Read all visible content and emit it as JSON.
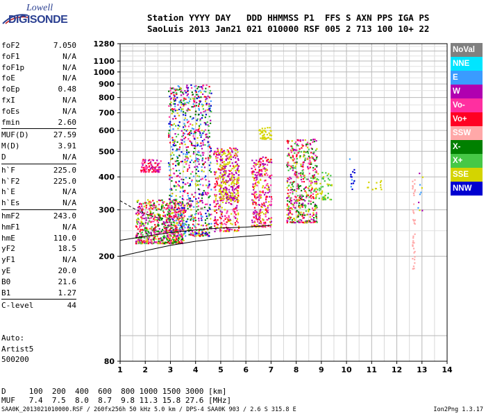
{
  "logo": {
    "line1": "Lowell",
    "line2": "DIGISONDE"
  },
  "header": {
    "line1": "Station YYYY DAY   DDD HHMMSS P1  FFS S AXN PPS IGA PS",
    "line2": "SaoLuis 2013 Jan21 021 010000 RSF 005 2 713 100 10+ 22"
  },
  "params": [
    {
      "k": "foF2",
      "v": "7.050"
    },
    {
      "k": "foF1",
      "v": "N/A"
    },
    {
      "k": "foF1p",
      "v": "N/A"
    },
    {
      "k": "foE",
      "v": "N/A"
    },
    {
      "k": "foEp",
      "v": "0.48"
    },
    {
      "k": "fxI",
      "v": "N/A"
    },
    {
      "k": "foEs",
      "v": "N/A"
    },
    {
      "k": "fmin",
      "v": "2.60"
    },
    {
      "sep": true
    },
    {
      "k": "MUF(D)",
      "v": "27.59"
    },
    {
      "k": "M(D)",
      "v": "3.91"
    },
    {
      "k": "D",
      "v": "N/A"
    },
    {
      "sep": true
    },
    {
      "k": "h`F",
      "v": "225.0"
    },
    {
      "k": "h`F2",
      "v": "225.0"
    },
    {
      "k": "h`E",
      "v": "N/A"
    },
    {
      "k": "h`Es",
      "v": "N/A"
    },
    {
      "sep": true
    },
    {
      "k": "hmF2",
      "v": "243.0"
    },
    {
      "k": "hmF1",
      "v": "N/A"
    },
    {
      "k": "hmE",
      "v": "110.0"
    },
    {
      "k": "yF2",
      "v": "18.5"
    },
    {
      "k": "yF1",
      "v": "N/A"
    },
    {
      "k": "yE",
      "v": "20.0"
    },
    {
      "k": "B0",
      "v": "21.6"
    },
    {
      "k": "B1",
      "v": "1.27"
    },
    {
      "sep": true
    },
    {
      "k": "C-level",
      "v": "44"
    }
  ],
  "auto": {
    "l1": "Auto:",
    "l2": "Artist5",
    "l3": "500200"
  },
  "muf_table": {
    "d_line": "D     100  200  400  600  800 1000 1500 3000 [km]",
    "muf_line": "MUF   7.4  7.5  8.0  8.7  9.8 11.3 15.8 27.6 [MHz]"
  },
  "footer": "SAA0K_2013021010000.RSF / 260fx256h 50 kHz 5.0 km / DPS-4 SAA0K 903 / 2.6 S 315.8 E",
  "version": "Ion2Png 1.3.17",
  "legend": [
    {
      "label": "NoVal",
      "color": "#808080"
    },
    {
      "label": "NNE",
      "color": "#00e5ff"
    },
    {
      "label": "E",
      "color": "#3a9bff"
    },
    {
      "label": "W",
      "color": "#b000b0"
    },
    {
      "label": "Vo-",
      "color": "#ff2fa0"
    },
    {
      "label": "Vo+",
      "color": "#ff0022"
    },
    {
      "label": "SSW",
      "color": "#ffa8a8"
    },
    {
      "label": "X-",
      "color": "#008000"
    },
    {
      "label": "X+",
      "color": "#46c846"
    },
    {
      "label": "SSE",
      "color": "#d4d400"
    },
    {
      "label": "NNW",
      "color": "#0000d0"
    }
  ],
  "chart_data": {
    "type": "scatter",
    "xlabel": "",
    "ylabel": "",
    "xlim": [
      1,
      14
    ],
    "ylim": [
      80,
      1280
    ],
    "y_scale": "log",
    "grid": true,
    "x_ticks": [
      "1",
      "2",
      "3",
      "4",
      "5",
      "6",
      "7",
      "8",
      "9",
      "10",
      "11",
      "12",
      "13",
      "14"
    ],
    "y_ticks": [
      {
        "v": 80,
        "label": "80"
      },
      {
        "v": 200,
        "label": "200"
      },
      {
        "v": 300,
        "label": "300"
      },
      {
        "v": 400,
        "label": "400"
      },
      {
        "v": 500,
        "label": "500"
      },
      {
        "v": 600,
        "label": "600"
      },
      {
        "v": 700,
        "label": "700"
      },
      {
        "v": 800,
        "label": "800"
      },
      {
        "v": 900,
        "label": "900"
      },
      {
        "v": 1000,
        "label": "1000"
      },
      {
        "v": 1100,
        "label": "1100"
      },
      {
        "v": 1280,
        "label": "1280"
      }
    ],
    "y_grid": [
      100,
      200,
      300,
      400,
      500,
      600,
      700,
      800,
      900,
      1000,
      1100,
      1200,
      1280
    ],
    "echo_clusters": [
      {
        "x0": 1.6,
        "x1": 3.5,
        "y0": 225,
        "y1": 330,
        "colors": [
          "#ff2fa0",
          "#ff0022",
          "#b000b0",
          "#008000",
          "#d4d400",
          "#46c846"
        ],
        "n": 700
      },
      {
        "x0": 2.9,
        "x1": 4.6,
        "y0": 240,
        "y1": 900,
        "colors": [
          "#b000b0",
          "#ff2fa0",
          "#ff0022",
          "#d4d400",
          "#008000",
          "#46c846",
          "#0000d0",
          "#3a9bff"
        ],
        "n": 900
      },
      {
        "x0": 1.8,
        "x1": 2.6,
        "y0": 420,
        "y1": 470,
        "colors": [
          "#b000b0",
          "#ff0022",
          "#ff2fa0"
        ],
        "n": 90
      },
      {
        "x0": 4.7,
        "x1": 5.7,
        "y0": 250,
        "y1": 520,
        "colors": [
          "#ff0022",
          "#ff2fa0",
          "#b000b0",
          "#d4d400"
        ],
        "n": 320
      },
      {
        "x0": 4.9,
        "x1": 5.7,
        "y0": 330,
        "y1": 520,
        "colors": [
          "#d4d400",
          "#b000b0"
        ],
        "n": 200
      },
      {
        "x0": 6.2,
        "x1": 7.0,
        "y0": 260,
        "y1": 480,
        "colors": [
          "#ff0022",
          "#ff2fa0",
          "#b000b0",
          "#d4d400"
        ],
        "n": 300
      },
      {
        "x0": 6.5,
        "x1": 7.0,
        "y0": 560,
        "y1": 620,
        "colors": [
          "#d4d400"
        ],
        "n": 40
      },
      {
        "x0": 7.6,
        "x1": 8.8,
        "y0": 270,
        "y1": 560,
        "colors": [
          "#d4d400",
          "#ff0022",
          "#008000",
          "#b000b0",
          "#ff2fa0",
          "#46c846"
        ],
        "n": 500
      },
      {
        "x0": 8.7,
        "x1": 9.4,
        "y0": 330,
        "y1": 420,
        "colors": [
          "#d4d400",
          "#46c846"
        ],
        "n": 60
      },
      {
        "x0": 10.1,
        "x1": 10.3,
        "y0": 360,
        "y1": 490,
        "colors": [
          "#3a9bff",
          "#0000d0"
        ],
        "n": 14
      },
      {
        "x0": 10.8,
        "x1": 11.4,
        "y0": 360,
        "y1": 390,
        "colors": [
          "#d4d400"
        ],
        "n": 12
      },
      {
        "x0": 12.6,
        "x1": 12.7,
        "y0": 180,
        "y1": 400,
        "colors": [
          "#ffa8a8"
        ],
        "n": 40
      },
      {
        "x0": 12.8,
        "x1": 13.0,
        "y0": 300,
        "y1": 430,
        "colors": [
          "#3a9bff",
          "#b000b0",
          "#d4d400"
        ],
        "n": 10
      }
    ],
    "trace_lines": [
      {
        "points": [
          [
            1,
            200
          ],
          [
            2,
            210
          ],
          [
            3,
            220
          ],
          [
            4,
            228
          ],
          [
            5,
            234
          ],
          [
            6,
            238
          ],
          [
            7,
            242
          ]
        ]
      },
      {
        "points": [
          [
            1,
            230
          ],
          [
            2,
            238
          ],
          [
            3,
            246
          ],
          [
            4,
            252
          ],
          [
            5,
            256
          ],
          [
            6,
            258
          ],
          [
            7,
            262
          ]
        ]
      },
      {
        "points": [
          [
            1,
            325
          ],
          [
            1.5,
            305
          ],
          [
            2,
            290
          ],
          [
            2.5,
            280
          ]
        ],
        "dashed": true
      }
    ]
  }
}
